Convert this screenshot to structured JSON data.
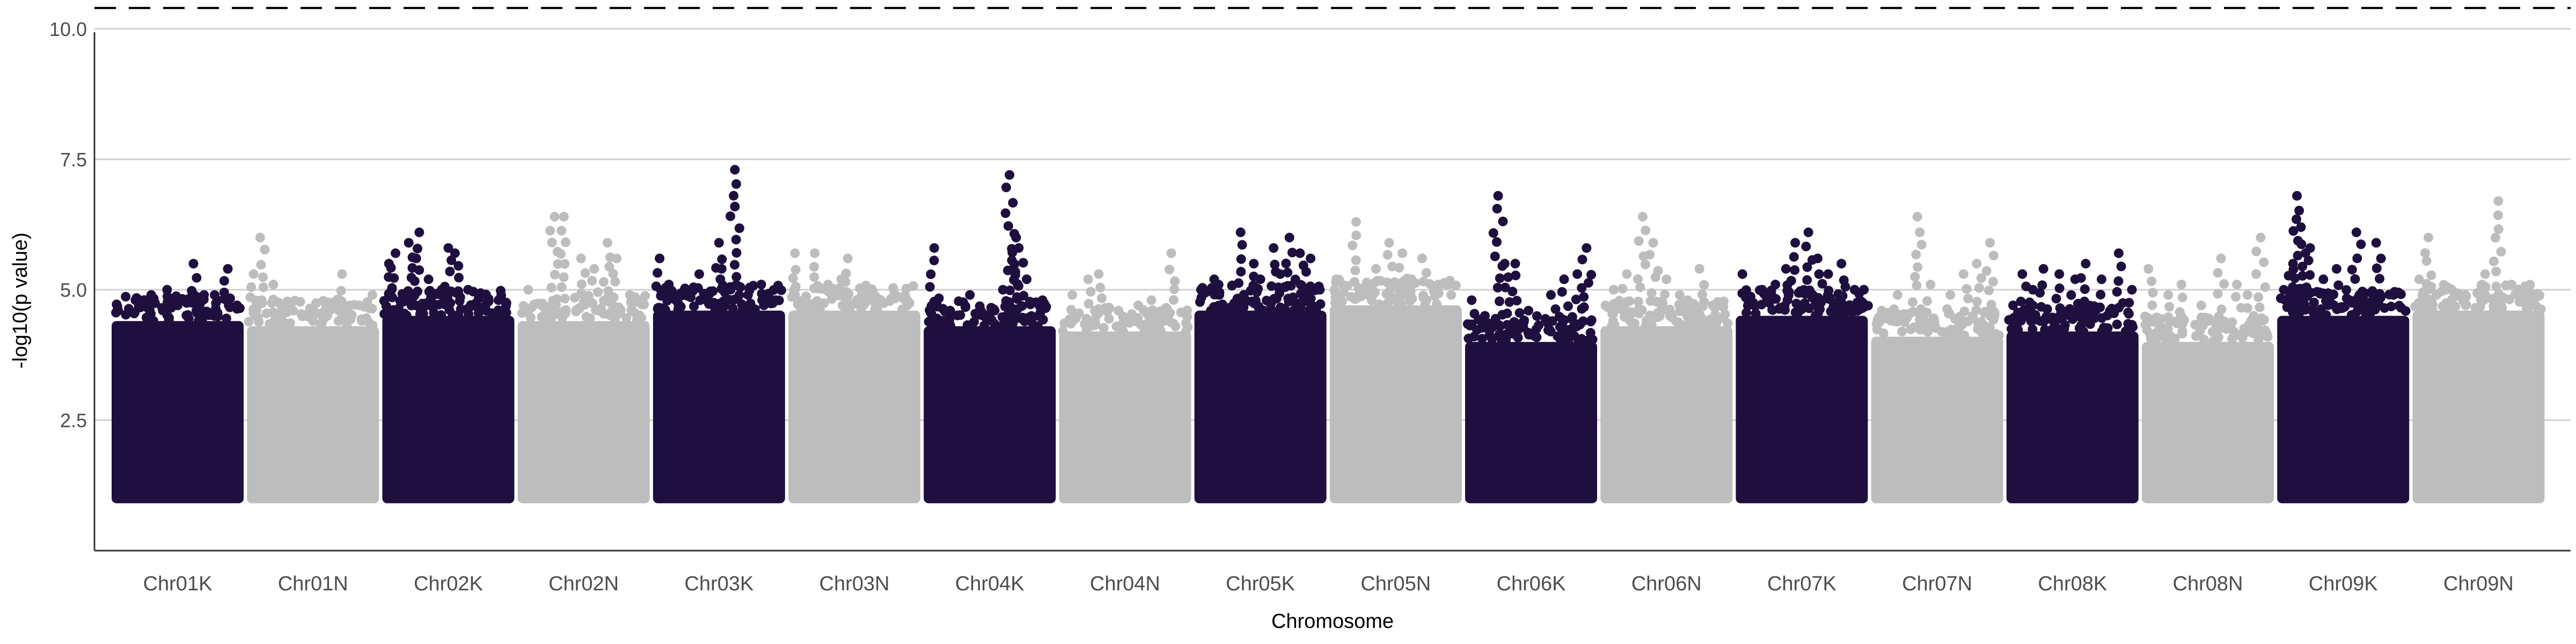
{
  "chart_data": {
    "type": "scatter",
    "subtype": "manhattan",
    "title": "",
    "xlabel": "Chromosome",
    "ylabel": "-log10(p value)",
    "ylim": [
      0.0,
      10.45
    ],
    "yticks": [
      2.5,
      5.0,
      7.5,
      10.0
    ],
    "ytick_labels": [
      "2.5",
      "5.0",
      "7.5",
      "10.0"
    ],
    "grid": "horizontal",
    "legend": "none",
    "colors": {
      "odd": "#1e0f3f",
      "even": "#bdbdbd",
      "threshold": "#000000",
      "grid": "#d0d0d0"
    },
    "threshold": {
      "value": 10.4,
      "style": "dashed"
    },
    "baseline_min": 1.0,
    "categories": [
      "Chr01K",
      "Chr01N",
      "Chr02K",
      "Chr02N",
      "Chr03K",
      "Chr03N",
      "Chr04K",
      "Chr04N",
      "Chr05K",
      "Chr05N",
      "Chr06K",
      "Chr06N",
      "Chr07K",
      "Chr07N",
      "Chr08K",
      "Chr08N",
      "Chr09K",
      "Chr09N"
    ],
    "series": [
      {
        "chromosome": "Chr01K",
        "dense_top": 4.4,
        "peaks": [
          [
            0.05,
            4.6
          ],
          [
            0.18,
            4.8
          ],
          [
            0.3,
            4.9
          ],
          [
            0.42,
            5.0
          ],
          [
            0.5,
            4.7
          ],
          [
            0.62,
            5.5
          ],
          [
            0.7,
            4.9
          ],
          [
            0.8,
            4.8
          ],
          [
            0.88,
            5.4
          ],
          [
            0.95,
            4.7
          ]
        ]
      },
      {
        "chromosome": "Chr01N",
        "dense_top": 4.3,
        "peaks": [
          [
            0.05,
            5.3
          ],
          [
            0.1,
            6.0
          ],
          [
            0.2,
            5.1
          ],
          [
            0.35,
            4.6
          ],
          [
            0.5,
            4.4
          ],
          [
            0.6,
            4.7
          ],
          [
            0.72,
            5.3
          ],
          [
            0.85,
            4.7
          ],
          [
            0.95,
            4.9
          ]
        ]
      },
      {
        "chromosome": "Chr02K",
        "dense_top": 4.5,
        "peaks": [
          [
            0.05,
            5.5
          ],
          [
            0.1,
            5.7
          ],
          [
            0.2,
            5.9
          ],
          [
            0.28,
            6.1
          ],
          [
            0.35,
            5.2
          ],
          [
            0.45,
            5.0
          ],
          [
            0.5,
            5.8
          ],
          [
            0.55,
            5.7
          ],
          [
            0.65,
            5.0
          ],
          [
            0.75,
            4.9
          ],
          [
            0.88,
            4.8
          ]
        ]
      },
      {
        "chromosome": "Chr02N",
        "dense_top": 4.4,
        "peaks": [
          [
            0.08,
            5.0
          ],
          [
            0.18,
            4.7
          ],
          [
            0.28,
            6.4
          ],
          [
            0.35,
            6.4
          ],
          [
            0.48,
            5.6
          ],
          [
            0.58,
            5.4
          ],
          [
            0.68,
            5.9
          ],
          [
            0.75,
            5.6
          ],
          [
            0.85,
            4.9
          ]
        ]
      },
      {
        "chromosome": "Chr03K",
        "dense_top": 4.6,
        "peaks": [
          [
            0.05,
            5.6
          ],
          [
            0.12,
            5.1
          ],
          [
            0.2,
            4.9
          ],
          [
            0.35,
            5.3
          ],
          [
            0.5,
            5.9
          ],
          [
            0.52,
            5.4
          ],
          [
            0.62,
            7.3
          ],
          [
            0.72,
            4.9
          ],
          [
            0.82,
            5.1
          ],
          [
            0.92,
            4.8
          ]
        ]
      },
      {
        "chromosome": "Chr03N",
        "dense_top": 4.6,
        "peaks": [
          [
            0.05,
            5.7
          ],
          [
            0.2,
            5.7
          ],
          [
            0.3,
            5.1
          ],
          [
            0.4,
            5.2
          ],
          [
            0.45,
            5.6
          ],
          [
            0.6,
            5.0
          ],
          [
            0.7,
            4.8
          ],
          [
            0.8,
            4.9
          ],
          [
            0.9,
            4.7
          ]
        ]
      },
      {
        "chromosome": "Chr04K",
        "dense_top": 4.3,
        "peaks": [
          [
            0.08,
            5.8
          ],
          [
            0.2,
            4.6
          ],
          [
            0.35,
            4.9
          ],
          [
            0.45,
            4.5
          ],
          [
            0.6,
            5.0
          ],
          [
            0.65,
            7.2
          ],
          [
            0.7,
            6.0
          ],
          [
            0.72,
            5.8
          ],
          [
            0.78,
            5.2
          ],
          [
            0.9,
            4.8
          ]
        ]
      },
      {
        "chromosome": "Chr04N",
        "dense_top": 4.2,
        "peaks": [
          [
            0.1,
            4.9
          ],
          [
            0.22,
            5.2
          ],
          [
            0.3,
            5.3
          ],
          [
            0.45,
            4.6
          ],
          [
            0.6,
            4.7
          ],
          [
            0.7,
            4.8
          ],
          [
            0.85,
            5.7
          ]
        ]
      },
      {
        "chromosome": "Chr05K",
        "dense_top": 4.6,
        "peaks": [
          [
            0.05,
            5.0
          ],
          [
            0.15,
            5.2
          ],
          [
            0.35,
            6.1
          ],
          [
            0.45,
            5.5
          ],
          [
            0.5,
            5.2
          ],
          [
            0.6,
            5.8
          ],
          [
            0.65,
            5.3
          ],
          [
            0.72,
            6.0
          ],
          [
            0.8,
            5.7
          ],
          [
            0.88,
            5.6
          ],
          [
            0.95,
            5.0
          ]
        ]
      },
      {
        "chromosome": "Chr05N",
        "dense_top": 4.7,
        "peaks": [
          [
            0.05,
            5.2
          ],
          [
            0.2,
            6.3
          ],
          [
            0.35,
            5.4
          ],
          [
            0.45,
            5.9
          ],
          [
            0.55,
            5.7
          ],
          [
            0.62,
            5.2
          ],
          [
            0.7,
            5.6
          ],
          [
            0.82,
            5.1
          ],
          [
            0.92,
            4.9
          ]
        ]
      },
      {
        "chromosome": "Chr06K",
        "dense_top": 4.0,
        "peaks": [
          [
            0.05,
            4.8
          ],
          [
            0.15,
            4.5
          ],
          [
            0.25,
            6.8
          ],
          [
            0.3,
            5.5
          ],
          [
            0.38,
            5.5
          ],
          [
            0.48,
            4.6
          ],
          [
            0.65,
            4.9
          ],
          [
            0.75,
            5.2
          ],
          [
            0.85,
            5.3
          ],
          [
            0.92,
            5.8
          ]
        ]
      },
      {
        "chromosome": "Chr06N",
        "dense_top": 4.3,
        "peaks": [
          [
            0.1,
            5.0
          ],
          [
            0.2,
            5.3
          ],
          [
            0.32,
            6.4
          ],
          [
            0.4,
            5.9
          ],
          [
            0.5,
            5.2
          ],
          [
            0.6,
            4.9
          ],
          [
            0.75,
            5.4
          ],
          [
            0.85,
            4.7
          ]
        ]
      },
      {
        "chromosome": "Chr07K",
        "dense_top": 4.5,
        "peaks": [
          [
            0.05,
            5.3
          ],
          [
            0.2,
            5.0
          ],
          [
            0.3,
            5.1
          ],
          [
            0.38,
            5.4
          ],
          [
            0.45,
            5.9
          ],
          [
            0.55,
            6.1
          ],
          [
            0.62,
            5.6
          ],
          [
            0.7,
            5.3
          ],
          [
            0.8,
            5.5
          ],
          [
            0.9,
            5.0
          ],
          [
            0.97,
            5.0
          ]
        ]
      },
      {
        "chromosome": "Chr07N",
        "dense_top": 4.1,
        "peaks": [
          [
            0.08,
            4.6
          ],
          [
            0.2,
            4.9
          ],
          [
            0.35,
            6.4
          ],
          [
            0.45,
            5.1
          ],
          [
            0.6,
            4.9
          ],
          [
            0.7,
            5.3
          ],
          [
            0.8,
            5.5
          ],
          [
            0.9,
            5.9
          ]
        ]
      },
      {
        "chromosome": "Chr08K",
        "dense_top": 4.2,
        "peaks": [
          [
            0.05,
            4.7
          ],
          [
            0.12,
            5.3
          ],
          [
            0.2,
            5.0
          ],
          [
            0.28,
            5.4
          ],
          [
            0.4,
            5.3
          ],
          [
            0.52,
            5.2
          ],
          [
            0.6,
            5.5
          ],
          [
            0.72,
            5.2
          ],
          [
            0.85,
            5.7
          ],
          [
            0.95,
            5.0
          ]
        ]
      },
      {
        "chromosome": "Chr08N",
        "dense_top": 4.0,
        "peaks": [
          [
            0.05,
            5.4
          ],
          [
            0.2,
            4.9
          ],
          [
            0.3,
            5.1
          ],
          [
            0.45,
            4.7
          ],
          [
            0.6,
            5.6
          ],
          [
            0.72,
            5.1
          ],
          [
            0.8,
            4.9
          ],
          [
            0.9,
            6.0
          ]
        ]
      },
      {
        "chromosome": "Chr09K",
        "dense_top": 4.5,
        "peaks": [
          [
            0.05,
            5.0
          ],
          [
            0.12,
            5.5
          ],
          [
            0.15,
            6.8
          ],
          [
            0.18,
            6.2
          ],
          [
            0.25,
            5.8
          ],
          [
            0.35,
            5.2
          ],
          [
            0.45,
            5.4
          ],
          [
            0.6,
            6.1
          ],
          [
            0.75,
            5.9
          ],
          [
            0.88,
            4.9
          ]
        ]
      },
      {
        "chromosome": "Chr09N",
        "dense_top": 4.6,
        "peaks": [
          [
            0.05,
            5.2
          ],
          [
            0.12,
            6.0
          ],
          [
            0.25,
            5.0
          ],
          [
            0.4,
            4.9
          ],
          [
            0.55,
            5.3
          ],
          [
            0.65,
            6.7
          ],
          [
            0.75,
            5.1
          ],
          [
            0.88,
            5.0
          ]
        ]
      }
    ]
  }
}
